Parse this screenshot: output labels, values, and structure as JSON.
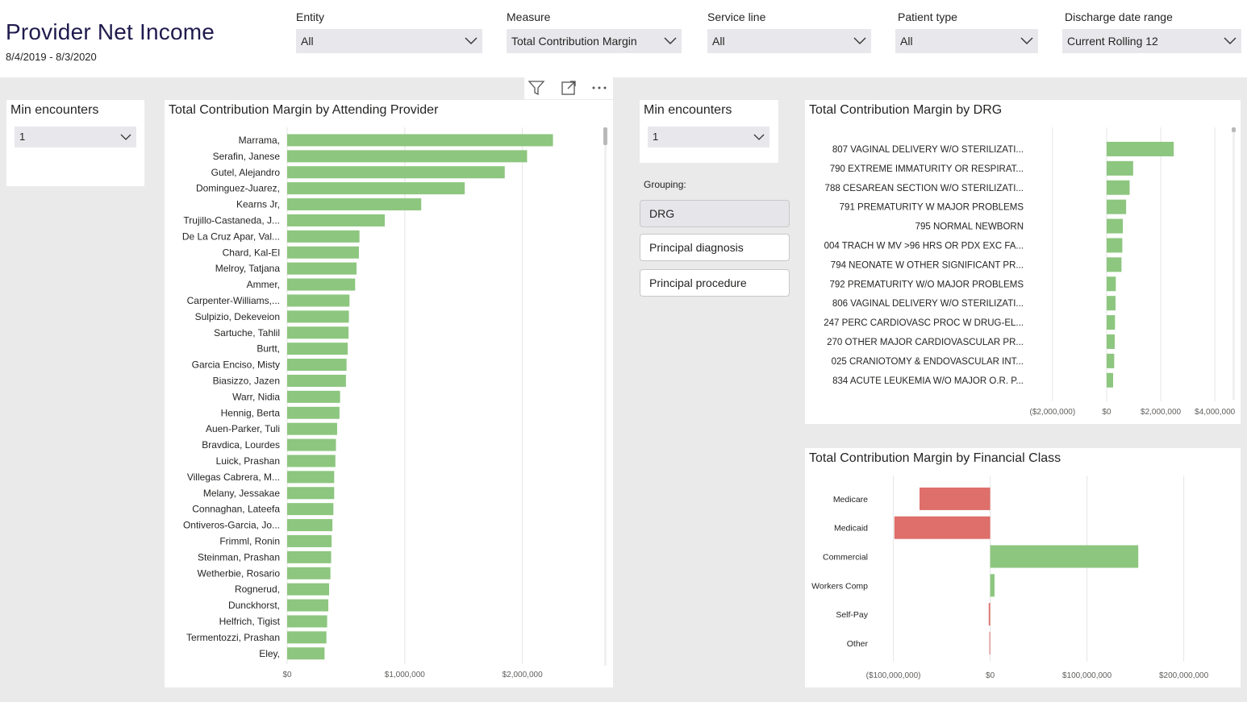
{
  "header": {
    "title": "Provider Net Income",
    "date_range": "8/4/2019 - 8/3/2020"
  },
  "filters": [
    {
      "label": "Entity",
      "value": "All"
    },
    {
      "label": "Measure",
      "value": "Total Contribution Margin"
    },
    {
      "label": "Service line",
      "value": "All"
    },
    {
      "label": "Patient type",
      "value": "All"
    },
    {
      "label": "Discharge date range",
      "value": "Current Rolling 12"
    }
  ],
  "left_min_encounters": {
    "label": "Min encounters",
    "value": "1"
  },
  "right_min_encounters": {
    "label": "Min encounters",
    "value": "1"
  },
  "grouping": {
    "label": "Grouping:",
    "options": [
      "DRG",
      "Principal diagnosis",
      "Principal procedure"
    ],
    "selected": "DRG"
  },
  "colors": {
    "positive": "#8dc67f",
    "negative": "#de6f6a",
    "title": "#1f1a4d"
  },
  "chart_data": [
    {
      "type": "bar",
      "orientation": "horizontal",
      "title": "Total Contribution Margin by Attending Provider",
      "categories": [
        "Marrama,",
        "Serafin, Janese",
        "Gutel, Alejandro",
        "Dominguez-Juarez,",
        "Kearns Jr,",
        "Trujillo-Castaneda, J...",
        "De La Cruz Apar, Val...",
        "Chard, Kal-El",
        "Melroy, Tatjana",
        "Ammer,",
        "Carpenter-Williams,...",
        "Sulpizio, Dekeveion",
        "Sartuche, Tahlil",
        "Burtt,",
        "Garcia Enciso, Misty",
        "Biasizzo, Jazen",
        "Warr, Nidia",
        "Hennig, Berta",
        "Auen-Parker, Tuli",
        "Bravdica, Lourdes",
        "Luick, Prashan",
        "Villegas Cabrera, M...",
        "Melany, Jessakae",
        "Connaghan, Lateefa",
        "Ontiveros-Garcia, Jo...",
        "Frimml, Ronin",
        "Steinman, Prashan",
        "Wetherbie, Rosario",
        "Rognerud,",
        "Dunckhorst,",
        "Helfrich, Tigist",
        "Termentozzi, Prashan",
        "Eley,"
      ],
      "values": [
        2260000,
        2040000,
        1850000,
        1510000,
        1140000,
        830000,
        615000,
        610000,
        590000,
        578000,
        530000,
        525000,
        522000,
        515000,
        505000,
        500000,
        450000,
        445000,
        425000,
        415000,
        410000,
        400000,
        400000,
        393000,
        385000,
        378000,
        374000,
        368000,
        357000,
        350000,
        340000,
        334000,
        318000
      ],
      "x_ticks": [
        "$0",
        "$1,000,000",
        "$2,000,000"
      ],
      "xlim": [
        0,
        2750000
      ]
    },
    {
      "type": "bar",
      "orientation": "horizontal",
      "title": "Total Contribution Margin by DRG",
      "categories": [
        "807 VAGINAL DELIVERY W/O STERILIZATI...",
        "790 EXTREME IMMATURITY OR RESPIRAT...",
        "788 CESAREAN SECTION W/O STERILIZATI...",
        "791 PREMATURITY W MAJOR PROBLEMS",
        "795 NORMAL NEWBORN",
        "004 TRACH W MV >96 HRS OR PDX EXC FA...",
        "794 NEONATE W OTHER SIGNIFICANT PR...",
        "792 PREMATURITY W/O MAJOR PROBLEMS",
        "806 VAGINAL DELIVERY W/O STERILIZATI...",
        "247 PERC CARDIOVASC PROC W DRUG-EL...",
        "270 OTHER MAJOR CARDIOVASCULAR PR...",
        "025 CRANIOTOMY & ENDOVASCULAR INT...",
        "834 ACUTE LEUKEMIA W/O MAJOR O.R. P..."
      ],
      "values": [
        2480000,
        980000,
        850000,
        720000,
        600000,
        580000,
        550000,
        340000,
        330000,
        310000,
        300000,
        280000,
        240000
      ],
      "x_ticks": [
        "($2,000,000)",
        "$0",
        "$2,000,000",
        "$4,000,000"
      ],
      "xlim": [
        -2800000,
        4650000
      ]
    },
    {
      "type": "bar",
      "orientation": "horizontal",
      "title": "Total Contribution Margin by Financial Class",
      "categories": [
        "Medicare",
        "Medicaid",
        "Commercial",
        "Workers Comp",
        "Self-Pay",
        "Other"
      ],
      "values": [
        -73000000,
        -99000000,
        153000000,
        4500000,
        -1500000,
        -800000
      ],
      "x_ticks": [
        "($100,000,000)",
        "$0",
        "$100,000,000",
        "$200,000,000"
      ],
      "xlim": [
        -118000000,
        227000000
      ]
    }
  ]
}
